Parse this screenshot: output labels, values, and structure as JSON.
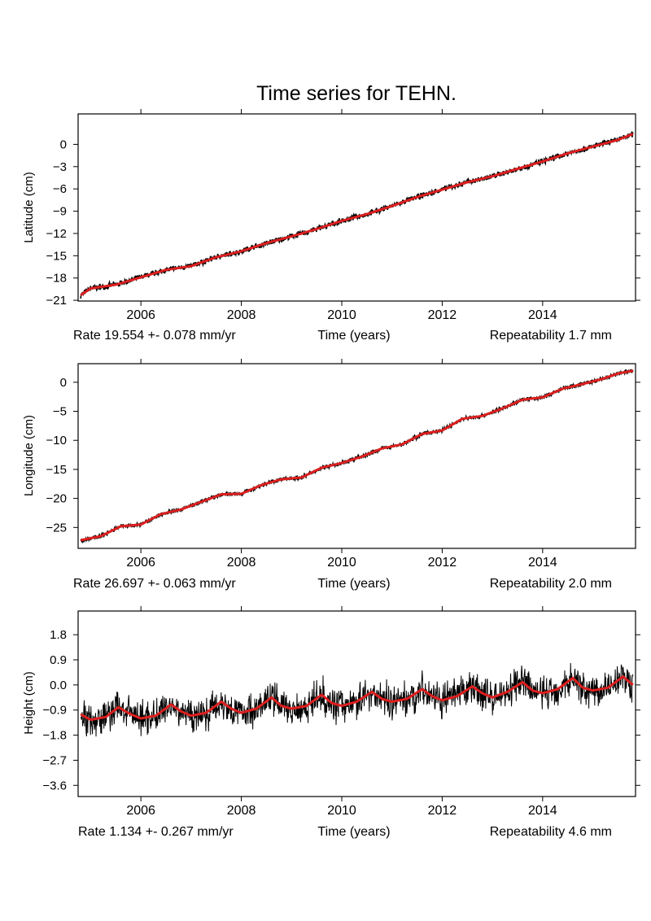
{
  "title": "Time series for TEHN.",
  "colors": {
    "observations": "#000000",
    "model": "#dd1e1e",
    "axis": "#000000"
  },
  "chart_data": [
    {
      "type": "line",
      "ylabel": "Latitude (cm)",
      "xlabel": "Time (years)",
      "rate_text": "Rate 19.554 +- 0.078 mm/yr",
      "repeatability_text": "Repeatability 1.7 mm",
      "xlim": [
        2004.75,
        2015.85
      ],
      "ylim": [
        -21.1,
        4.1
      ],
      "x_ticks": [
        2006,
        2008,
        2010,
        2012,
        2014
      ],
      "y_ticks": [
        0,
        -3,
        -6,
        -9,
        -12,
        -15,
        -18,
        -21
      ],
      "y_tick_labels": [
        "0",
        "−3",
        "−6",
        "−9",
        "−12",
        "−15",
        "−18",
        "−21"
      ],
      "series": [
        {
          "x": [
            2004.8,
            2005.0,
            2005.5,
            2006.0,
            2006.5,
            2007.0,
            2007.5,
            2008.0,
            2008.5,
            2009.0,
            2009.5,
            2010.0,
            2010.5,
            2011.0,
            2011.5,
            2012.0,
            2012.5,
            2013.0,
            2013.5,
            2014.0,
            2014.5,
            2015.0,
            2015.5,
            2015.8
          ],
          "y": [
            -20.3,
            -19.4,
            -18.9,
            -17.9,
            -16.9,
            -16.4,
            -15.2,
            -14.4,
            -13.3,
            -12.4,
            -11.4,
            -10.3,
            -9.4,
            -8.3,
            -7.1,
            -6.1,
            -5.1,
            -4.3,
            -3.3,
            -2.3,
            -1.2,
            -0.3,
            0.6,
            1.4
          ]
        }
      ],
      "noise": 0.35
    },
    {
      "type": "line",
      "ylabel": "Longitude (cm)",
      "xlabel": "Time (years)",
      "rate_text": "Rate 26.697 +- 0.063 mm/yr",
      "repeatability_text": "Repeatability 2.0 mm",
      "xlim": [
        2004.75,
        2015.85
      ],
      "ylim": [
        -28.6,
        3.2
      ],
      "x_ticks": [
        2006,
        2008,
        2010,
        2012,
        2014
      ],
      "y_ticks": [
        0,
        -5,
        -10,
        -15,
        -20,
        -25
      ],
      "y_tick_labels": [
        "0",
        "−5",
        "−10",
        "−15",
        "−20",
        "−25"
      ],
      "series": [
        {
          "x": [
            2004.8,
            2005.2,
            2005.6,
            2006.0,
            2006.4,
            2006.8,
            2007.2,
            2007.6,
            2008.0,
            2008.4,
            2008.8,
            2009.2,
            2009.6,
            2010.0,
            2010.4,
            2010.8,
            2011.2,
            2011.6,
            2012.0,
            2012.4,
            2012.8,
            2013.2,
            2013.6,
            2014.0,
            2014.4,
            2014.8,
            2015.2,
            2015.5,
            2015.8
          ],
          "y": [
            -27.2,
            -26.5,
            -24.8,
            -24.5,
            -22.7,
            -21.9,
            -20.6,
            -19.3,
            -19.2,
            -17.7,
            -16.7,
            -16.4,
            -14.7,
            -13.9,
            -12.8,
            -11.4,
            -10.7,
            -8.9,
            -8.3,
            -6.3,
            -5.8,
            -4.5,
            -3.0,
            -2.6,
            -1.1,
            -0.3,
            0.6,
            1.5,
            2.0
          ]
        }
      ],
      "noise": 0.3
    },
    {
      "type": "line",
      "ylabel": "Height (cm)",
      "xlabel": "Time (years)",
      "rate_text": "Rate 1.134 +- 0.267 mm/yr",
      "repeatability_text": "Repeatability 4.6 mm",
      "xlim": [
        2004.75,
        2015.85
      ],
      "ylim": [
        -4.0,
        2.65
      ],
      "x_ticks": [
        2006,
        2008,
        2010,
        2012,
        2014
      ],
      "y_ticks": [
        1.8,
        0.9,
        0.0,
        -0.9,
        -1.8,
        -2.7,
        -3.6
      ],
      "y_tick_labels": [
        "1.8",
        "0.9",
        "0.0",
        "−0.9",
        "−1.8",
        "−2.7",
        "−3.6"
      ],
      "series": [
        {
          "x": [
            2004.8,
            2005.0,
            2005.3,
            2005.55,
            2005.8,
            2006.0,
            2006.3,
            2006.6,
            2006.8,
            2007.0,
            2007.3,
            2007.6,
            2007.8,
            2008.0,
            2008.3,
            2008.6,
            2008.8,
            2009.0,
            2009.3,
            2009.6,
            2009.8,
            2010.0,
            2010.3,
            2010.6,
            2010.8,
            2011.0,
            2011.3,
            2011.6,
            2011.8,
            2012.0,
            2012.3,
            2012.6,
            2012.8,
            2013.0,
            2013.3,
            2013.6,
            2013.8,
            2014.0,
            2014.3,
            2014.6,
            2014.8,
            2015.0,
            2015.3,
            2015.6,
            2015.8
          ],
          "y": [
            -1.05,
            -1.25,
            -1.15,
            -0.8,
            -1.05,
            -1.2,
            -1.1,
            -0.7,
            -0.95,
            -1.1,
            -1.0,
            -0.6,
            -0.85,
            -1.0,
            -0.85,
            -0.45,
            -0.75,
            -0.85,
            -0.75,
            -0.35,
            -0.65,
            -0.75,
            -0.6,
            -0.25,
            -0.5,
            -0.6,
            -0.5,
            -0.15,
            -0.4,
            -0.55,
            -0.4,
            -0.05,
            -0.3,
            -0.45,
            -0.25,
            0.1,
            -0.2,
            -0.3,
            -0.15,
            0.25,
            -0.1,
            -0.2,
            -0.1,
            0.3,
            0.0
          ]
        }
      ],
      "noise": 0.55
    }
  ]
}
